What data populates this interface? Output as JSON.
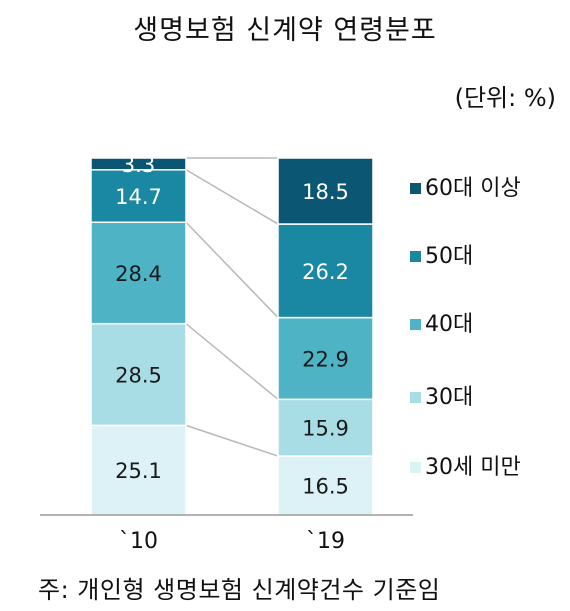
{
  "title": "생명보험 신계약 연령분포",
  "unit": "(단위: %)",
  "note": "주: 개인형 생명보험 신계약건수 기준임",
  "colors": {
    "60plus": "#0b5673",
    "50s": "#1a87a3",
    "40s": "#4fb3c6",
    "30s": "#a9dde6",
    "under30": "#ddf2f6"
  },
  "chart_data": {
    "type": "bar",
    "stacked": true,
    "categories": [
      "`10",
      "`19"
    ],
    "ylim": [
      0,
      100
    ],
    "series": [
      {
        "name": "30세 미만",
        "color_key": "under30",
        "values": [
          25.1,
          16.5
        ]
      },
      {
        "name": "30대",
        "color_key": "30s",
        "values": [
          28.5,
          15.9
        ]
      },
      {
        "name": "40대",
        "color_key": "40s",
        "values": [
          28.4,
          22.9
        ]
      },
      {
        "name": "50대",
        "color_key": "50s",
        "values": [
          14.7,
          26.2
        ]
      },
      {
        "name": "60대 이상",
        "color_key": "60plus",
        "values": [
          3.3,
          18.5
        ]
      }
    ],
    "legend_position": "right"
  }
}
